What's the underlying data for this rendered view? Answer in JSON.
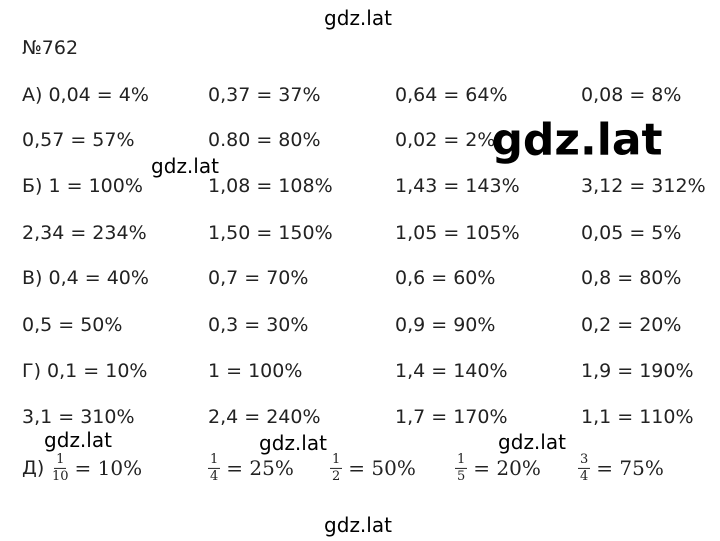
{
  "problem": "№762",
  "rows": [
    [
      "А) 0,04 = 4%",
      "0,37 = 37%",
      "0,64 = 64%",
      "0,08 = 8%"
    ],
    [
      "0,57 = 57%",
      "0.80 = 80%",
      "0,02 = 2%",
      null
    ],
    [
      "Б) 1 = 100%",
      "1,08 = 108%",
      "1,43 = 143%",
      "3,12 = 312%"
    ],
    [
      "2,34 = 234%",
      "1,50 = 150%",
      "1,05 = 105%",
      "0,05 = 5%"
    ],
    [
      "В) 0,4 = 40%",
      "0,7 = 70%",
      "0,6 = 60%",
      "0,8 = 80%"
    ],
    [
      "0,5 = 50%",
      "0,3 = 30%",
      "0,9 = 90%",
      "0,2 = 20%"
    ],
    [
      "Г) 0,1 = 10%",
      "1 = 100%",
      "1,4 = 140%",
      "1,9 = 190%"
    ],
    [
      "3,1 = 310%",
      "2,4 = 240%",
      "1,7 = 170%",
      "1,1 = 110%"
    ]
  ],
  "fractions": {
    "label": "Д)",
    "items": [
      {
        "num": "1",
        "den": "10",
        "result": "= 10%"
      },
      {
        "num": "1",
        "den": "4",
        "result": "= 25%"
      },
      {
        "num": "1",
        "den": "2",
        "result": "= 50%"
      },
      {
        "num": "1",
        "den": "5",
        "result": "= 20%"
      },
      {
        "num": "3",
        "den": "4",
        "result": "= 75%"
      }
    ]
  },
  "watermarks": [
    "gdz.lat",
    "gdz.lat",
    "gdz.lat",
    "gdz.lat",
    "gdz.lat",
    "gdz.lat",
    "gdz.lat"
  ]
}
